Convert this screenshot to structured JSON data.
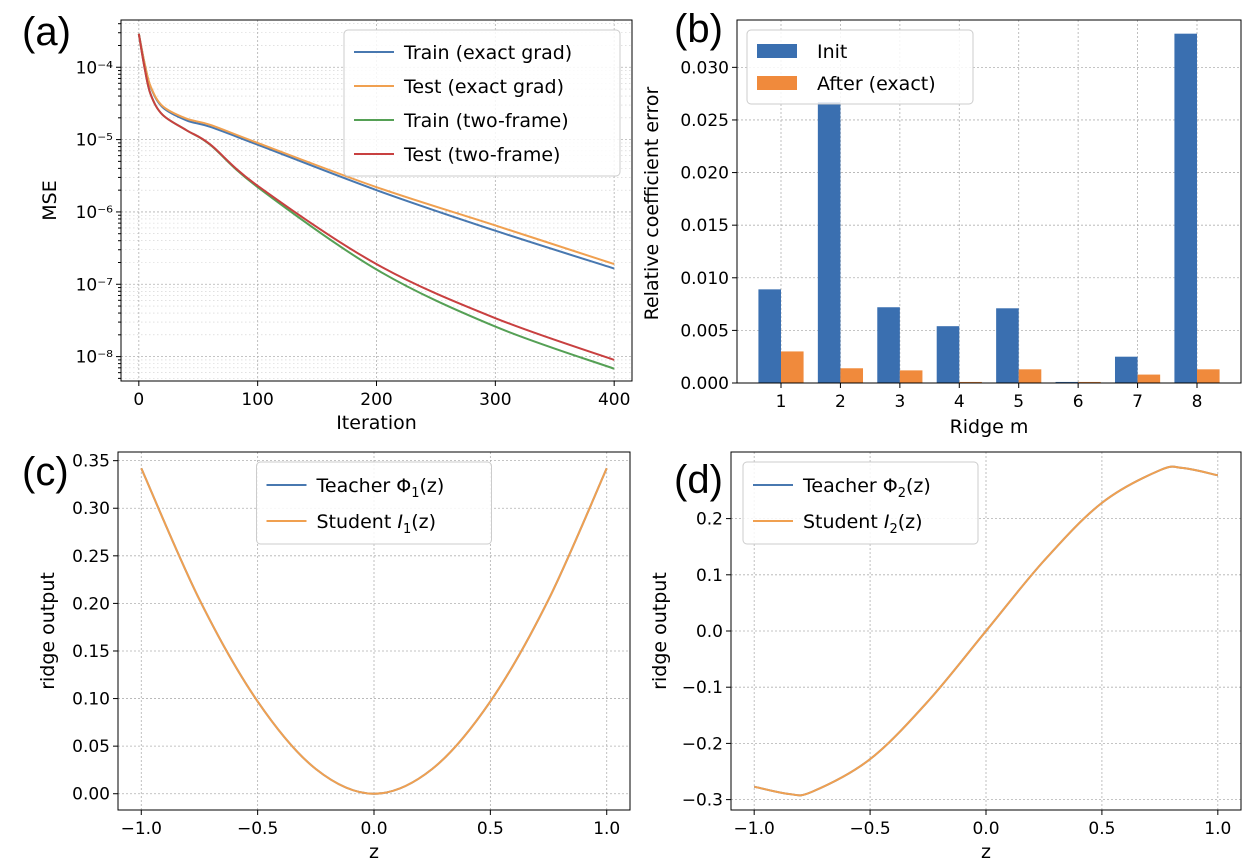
{
  "panels": [
    {
      "label": "(a)",
      "chart_data": {
        "type": "line",
        "xlabel": "Iteration",
        "ylabel": "MSE",
        "xlim": [
          -15,
          415
        ],
        "ylim": [
          4.6e-09,
          0.00045
        ],
        "yscale": "log",
        "xticks": [
          0,
          100,
          200,
          300,
          400
        ],
        "yticks": [
          1e-08,
          1e-07,
          1e-06,
          1e-05,
          0.0001
        ],
        "ytick_labels": [
          "10⁻⁸",
          "10⁻⁷",
          "10⁻⁶",
          "10⁻⁵",
          "10⁻⁴"
        ],
        "grid": true,
        "legend_position": "top-right",
        "series": [
          {
            "name": "Train (exact grad)",
            "color": "#4878b0",
            "x": [
              0,
              5,
              10,
              20,
              40,
              60,
              100,
              200,
              300,
              400
            ],
            "y": [
              0.00029,
              0.00011,
              5.3e-05,
              2.8e-05,
              1.85e-05,
              1.5e-05,
              8.5e-06,
              2e-06,
              5.5e-07,
              1.65e-07
            ]
          },
          {
            "name": "Test  (exact grad)",
            "color": "#f0a050",
            "x": [
              0,
              5,
              10,
              20,
              40,
              60,
              100,
              200,
              300,
              400
            ],
            "y": [
              0.00029,
              0.00011,
              5.4e-05,
              2.9e-05,
              1.95e-05,
              1.6e-05,
              9e-06,
              2.2e-06,
              6.5e-07,
              1.9e-07
            ]
          },
          {
            "name": "Train (two-frame)",
            "color": "#55a055",
            "x": [
              0,
              5,
              10,
              20,
              40,
              60,
              100,
              200,
              300,
              400
            ],
            "y": [
              0.00029,
              9.5e-05,
              4.2e-05,
              2.2e-05,
              1.35e-05,
              8.5e-06,
              2.2e-06,
              1.6e-07,
              2.6e-08,
              6.8e-09
            ]
          },
          {
            "name": "Test  (two-frame)",
            "color": "#c84040",
            "x": [
              0,
              5,
              10,
              20,
              40,
              60,
              100,
              200,
              300,
              400
            ],
            "y": [
              0.00029,
              9.5e-05,
              4.2e-05,
              2.2e-05,
              1.35e-05,
              8.6e-06,
              2.3e-06,
              1.9e-07,
              3.4e-08,
              9e-09
            ]
          }
        ]
      }
    },
    {
      "label": "(b)",
      "chart_data": {
        "type": "bar",
        "xlabel": "Ridge m",
        "ylabel": "Relative coefficient error",
        "categories": [
          "1",
          "2",
          "3",
          "4",
          "5",
          "6",
          "7",
          "8"
        ],
        "ylim": [
          0,
          0.0345
        ],
        "yticks": [
          0,
          0.005,
          0.01,
          0.015,
          0.02,
          0.025,
          0.03
        ],
        "ytick_labels": [
          "0.000",
          "0.005",
          "0.010",
          "0.015",
          "0.020",
          "0.025",
          "0.030"
        ],
        "grid": true,
        "legend_position": "top-left",
        "series": [
          {
            "name": "Init",
            "color": "#3a6fb0",
            "values": [
              0.0089,
              0.0267,
              0.0072,
              0.0054,
              0.0071,
              0.0001,
              0.0025,
              0.0332
            ]
          },
          {
            "name": "After (exact)",
            "color": "#f08a3c",
            "values": [
              0.003,
              0.0014,
              0.0012,
              0.0001,
              0.0013,
              0.0001,
              0.0008,
              0.0013
            ]
          }
        ]
      }
    },
    {
      "label": "(c)",
      "chart_data": {
        "type": "line",
        "xlabel": "z",
        "ylabel": "ridge output",
        "xlim": [
          -1.1,
          1.1
        ],
        "ylim": [
          -0.0171,
          0.3591
        ],
        "xticks": [
          -1.0,
          -0.5,
          0.0,
          0.5,
          1.0
        ],
        "xtick_labels": [
          "−1.0",
          "−0.5",
          "0.0",
          "0.5",
          "1.0"
        ],
        "yticks": [
          0.0,
          0.05,
          0.1,
          0.15,
          0.2,
          0.25,
          0.3,
          0.35
        ],
        "ytick_labels": [
          "0.00",
          "0.05",
          "0.10",
          "0.15",
          "0.20",
          "0.25",
          "0.30",
          "0.35"
        ],
        "grid": true,
        "legend_position": "top-center",
        "series": [
          {
            "name": "Teacher",
            "math": "Φ",
            "sub": "1",
            "arg": "(z)",
            "color": "#4878b0",
            "x": [
              -1.0,
              -0.75,
              -0.5,
              -0.25,
              0.0,
              0.25,
              0.5,
              0.75,
              1.0
            ],
            "y": [
              0.342,
              0.204,
              0.097,
              0.026,
              0.0,
              0.026,
              0.097,
              0.204,
              0.342
            ]
          },
          {
            "name": "Student",
            "math": "I",
            "sub": "1",
            "arg": "(z)",
            "color": "#f0a050",
            "x": [
              -1.0,
              -0.75,
              -0.5,
              -0.25,
              0.0,
              0.25,
              0.5,
              0.75,
              1.0
            ],
            "y": [
              0.342,
              0.204,
              0.097,
              0.026,
              0.0,
              0.026,
              0.097,
              0.204,
              0.342
            ]
          }
        ]
      }
    },
    {
      "label": "(d)",
      "chart_data": {
        "type": "line",
        "xlabel": "z",
        "ylabel": "ridge output",
        "xlim": [
          -1.1,
          1.1
        ],
        "ylim": [
          -0.3185,
          0.3185
        ],
        "xticks": [
          -1.0,
          -0.5,
          0.0,
          0.5,
          1.0
        ],
        "xtick_labels": [
          "−1.0",
          "−0.5",
          "0.0",
          "0.5",
          "1.0"
        ],
        "yticks": [
          -0.3,
          -0.2,
          -0.1,
          0.0,
          0.1,
          0.2
        ],
        "ytick_labels": [
          "−0.3",
          "−0.2",
          "−0.1",
          "0.0",
          "0.1",
          "0.2"
        ],
        "grid": true,
        "legend_position": "top-left",
        "series": [
          {
            "name": "Teacher",
            "math": "Φ",
            "sub": "2",
            "arg": "(z)",
            "color": "#4878b0",
            "x": [
              -1.0,
              -0.85,
              -0.75,
              -0.5,
              -0.25,
              0.0,
              0.25,
              0.5,
              0.75,
              0.85,
              1.0
            ],
            "y": [
              -0.277,
              -0.29,
              -0.286,
              -0.228,
              -0.125,
              0.0,
              0.125,
              0.228,
              0.286,
              0.29,
              0.277
            ]
          },
          {
            "name": "Student",
            "math": "I",
            "sub": "2",
            "arg": "(z)",
            "color": "#f0a050",
            "x": [
              -1.0,
              -0.85,
              -0.75,
              -0.5,
              -0.25,
              0.0,
              0.25,
              0.5,
              0.75,
              0.85,
              1.0
            ],
            "y": [
              -0.277,
              -0.29,
              -0.286,
              -0.228,
              -0.125,
              0.0,
              0.125,
              0.228,
              0.286,
              0.29,
              0.277
            ]
          }
        ]
      }
    }
  ]
}
